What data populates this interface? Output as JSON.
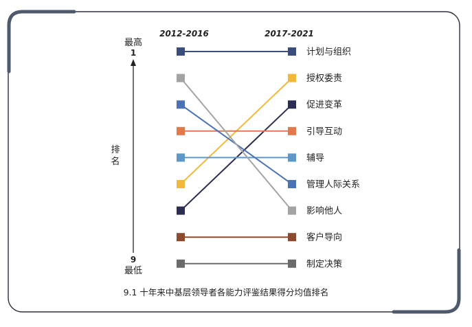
{
  "chart_data": {
    "type": "slope",
    "left_header": "2012-2016",
    "right_header": "2017-2021",
    "top_label": "最高",
    "top_rank": "1",
    "bottom_label": "最低",
    "bottom_rank": "9",
    "axis_label": "排名",
    "caption": "9.1 十年来中基层领导者各能力评鉴结果得分均值排名",
    "series": [
      {
        "name": "计划与组织",
        "rank_2012_2016": 1,
        "rank_2017_2021": 1,
        "color": "#3a4e7e"
      },
      {
        "name": "授权委责",
        "rank_2012_2016": 6,
        "rank_2017_2021": 2,
        "color": "#f2b83c"
      },
      {
        "name": "促进变革",
        "rank_2012_2016": 7,
        "rank_2017_2021": 3,
        "color": "#2b2d52"
      },
      {
        "name": "引导互动",
        "rank_2012_2016": 4,
        "rank_2017_2021": 4,
        "color": "#e07a4c"
      },
      {
        "name": "辅导",
        "rank_2012_2016": 5,
        "rank_2017_2021": 5,
        "color": "#5e98c9"
      },
      {
        "name": "管理人际关系",
        "rank_2012_2016": 3,
        "rank_2017_2021": 6,
        "color": "#4a72b4"
      },
      {
        "name": "影响他人",
        "rank_2012_2016": 2,
        "rank_2017_2021": 7,
        "color": "#a3a3a3"
      },
      {
        "name": "客户导向",
        "rank_2012_2016": 8,
        "rank_2017_2021": 8,
        "color": "#8c4a2f"
      },
      {
        "name": "制定决策",
        "rank_2012_2016": 9,
        "rank_2017_2021": 9,
        "color": "#6b6b6b"
      }
    ]
  }
}
